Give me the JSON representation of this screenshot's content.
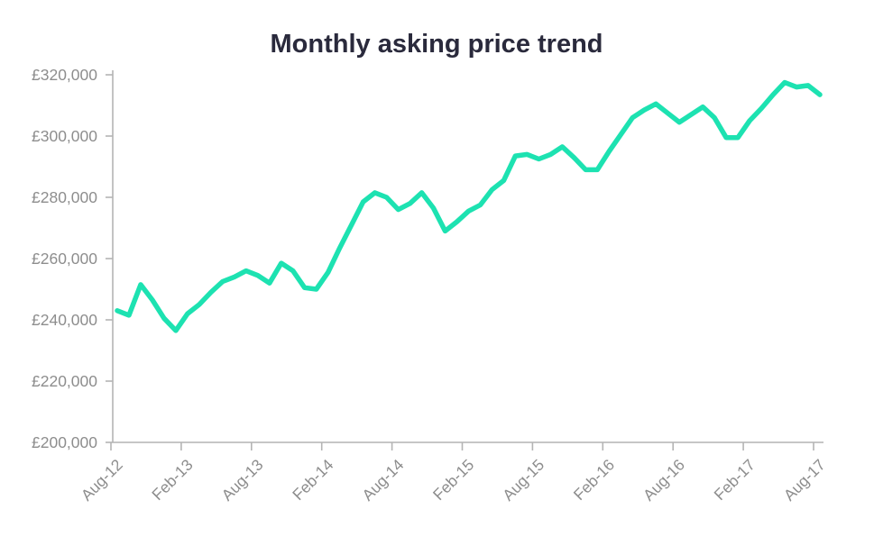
{
  "title": "Monthly asking price trend",
  "colors": {
    "line": "#1de2b1",
    "title": "#2a2a3c",
    "tick_label": "#8d8d8d",
    "axis": "#b4b4b4",
    "background": "#ffffff"
  },
  "chart_data": {
    "type": "line",
    "title": "Monthly asking price trend",
    "xlabel": "",
    "ylabel": "",
    "currency": "£",
    "grid": false,
    "legend": null,
    "ylim": [
      200000,
      320000
    ],
    "y_tick_step": 20000,
    "y_tick_labels": [
      "£200,000",
      "£220,000",
      "£240,000",
      "£260,000",
      "£280,000",
      "£300,000",
      "£320,000"
    ],
    "x_tick_labels": [
      "Aug-12",
      "Feb-13",
      "Aug-13",
      "Feb-14",
      "Aug-14",
      "Feb-15",
      "Aug-15",
      "Feb-16",
      "Aug-16",
      "Feb-17",
      "Aug-17"
    ],
    "x": [
      "Aug-12",
      "Sep-12",
      "Oct-12",
      "Nov-12",
      "Dec-12",
      "Jan-13",
      "Feb-13",
      "Mar-13",
      "Apr-13",
      "May-13",
      "Jun-13",
      "Jul-13",
      "Aug-13",
      "Sep-13",
      "Oct-13",
      "Nov-13",
      "Dec-13",
      "Jan-14",
      "Feb-14",
      "Mar-14",
      "Apr-14",
      "May-14",
      "Jun-14",
      "Jul-14",
      "Aug-14",
      "Sep-14",
      "Oct-14",
      "Nov-14",
      "Dec-14",
      "Jan-15",
      "Feb-15",
      "Mar-15",
      "Apr-15",
      "May-15",
      "Jun-15",
      "Jul-15",
      "Aug-15",
      "Sep-15",
      "Oct-15",
      "Nov-15",
      "Dec-15",
      "Jan-16",
      "Feb-16",
      "Mar-16",
      "Apr-16",
      "May-16",
      "Jun-16",
      "Jul-16",
      "Aug-16",
      "Sep-16",
      "Oct-16",
      "Nov-16",
      "Dec-16",
      "Jan-17",
      "Feb-17",
      "Mar-17",
      "Apr-17",
      "May-17",
      "Jun-17",
      "Jul-17",
      "Aug-17"
    ],
    "values": [
      243000,
      241500,
      251500,
      246500,
      240500,
      236500,
      242000,
      245000,
      249000,
      252500,
      254000,
      256000,
      254500,
      252000,
      258500,
      256000,
      250500,
      250000,
      255500,
      263500,
      271000,
      278500,
      281500,
      280000,
      276000,
      278000,
      281500,
      276500,
      269000,
      272000,
      275500,
      277500,
      282500,
      285500,
      293500,
      294000,
      292500,
      294000,
      296500,
      293000,
      289000,
      289000,
      295000,
      300500,
      306000,
      308500,
      310500,
      307500,
      304500,
      307000,
      309500,
      306000,
      299500,
      299500,
      305000,
      309000,
      313500,
      317500,
      316000,
      316500,
      313500
    ]
  }
}
